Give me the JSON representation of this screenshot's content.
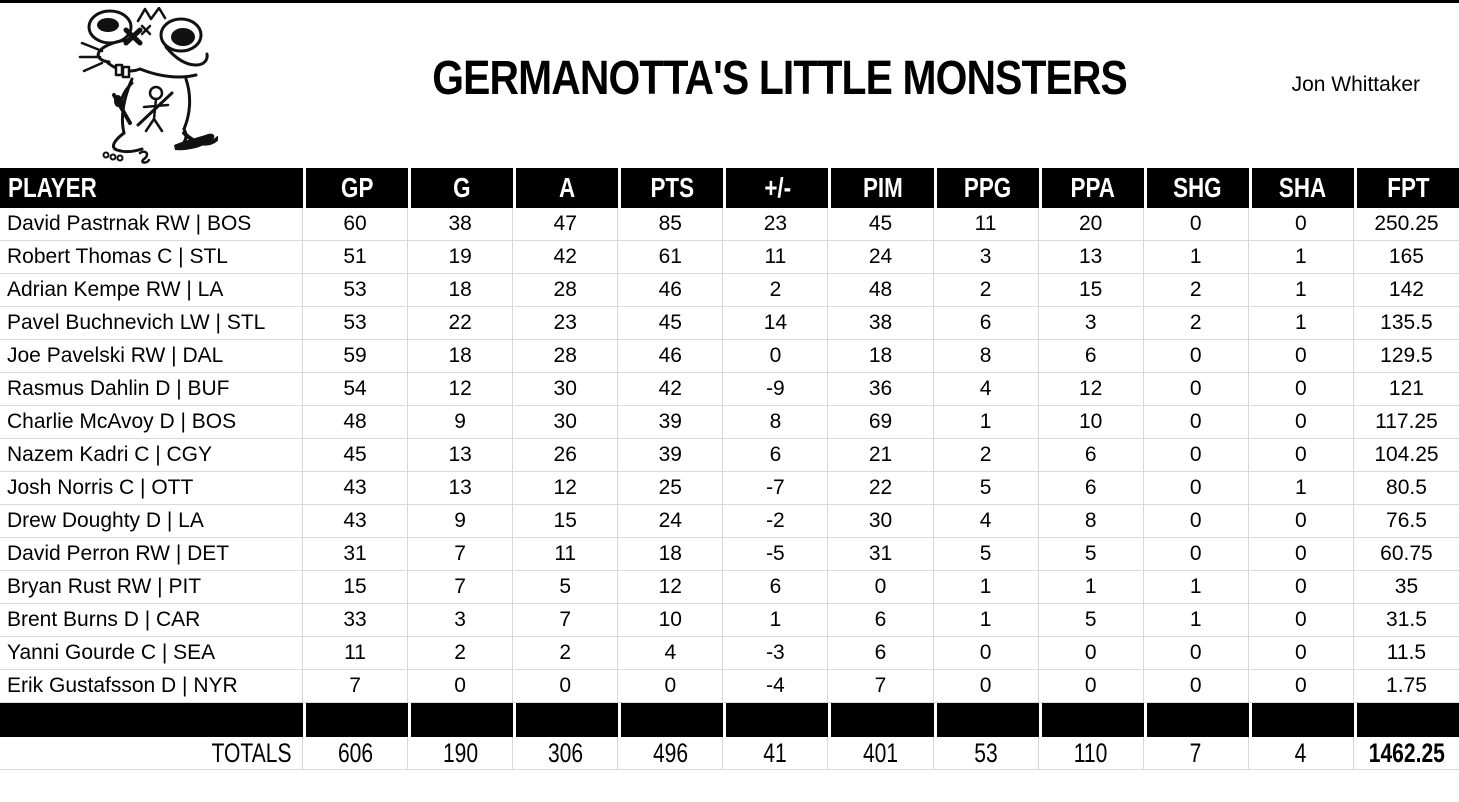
{
  "header": {
    "team_name": "GERMANOTTA'S LITTLE MONSTERS",
    "owner": "Jon Whittaker",
    "logo_icon": "rat-cartoon-doodle"
  },
  "table": {
    "columns": [
      "PLAYER",
      "GP",
      "G",
      "A",
      "PTS",
      "+/-",
      "PIM",
      "PPG",
      "PPA",
      "SHG",
      "SHA",
      "FPT"
    ],
    "rows": [
      {
        "player": "David Pastrnak RW | BOS",
        "stats": [
          "60",
          "38",
          "47",
          "85",
          "23",
          "45",
          "11",
          "20",
          "0",
          "0",
          "250.25"
        ]
      },
      {
        "player": "Robert Thomas C | STL",
        "stats": [
          "51",
          "19",
          "42",
          "61",
          "11",
          "24",
          "3",
          "13",
          "1",
          "1",
          "165"
        ]
      },
      {
        "player": "Adrian Kempe RW | LA",
        "stats": [
          "53",
          "18",
          "28",
          "46",
          "2",
          "48",
          "2",
          "15",
          "2",
          "1",
          "142"
        ]
      },
      {
        "player": "Pavel Buchnevich LW | STL",
        "stats": [
          "53",
          "22",
          "23",
          "45",
          "14",
          "38",
          "6",
          "3",
          "2",
          "1",
          "135.5"
        ]
      },
      {
        "player": "Joe Pavelski RW | DAL",
        "stats": [
          "59",
          "18",
          "28",
          "46",
          "0",
          "18",
          "8",
          "6",
          "0",
          "0",
          "129.5"
        ]
      },
      {
        "player": "Rasmus Dahlin D | BUF",
        "stats": [
          "54",
          "12",
          "30",
          "42",
          "-9",
          "36",
          "4",
          "12",
          "0",
          "0",
          "121"
        ]
      },
      {
        "player": "Charlie McAvoy D | BOS",
        "stats": [
          "48",
          "9",
          "30",
          "39",
          "8",
          "69",
          "1",
          "10",
          "0",
          "0",
          "117.25"
        ]
      },
      {
        "player": "Nazem Kadri C | CGY",
        "stats": [
          "45",
          "13",
          "26",
          "39",
          "6",
          "21",
          "2",
          "6",
          "0",
          "0",
          "104.25"
        ]
      },
      {
        "player": "Josh Norris C | OTT",
        "stats": [
          "43",
          "13",
          "12",
          "25",
          "-7",
          "22",
          "5",
          "6",
          "0",
          "1",
          "80.5"
        ]
      },
      {
        "player": "Drew Doughty D | LA",
        "stats": [
          "43",
          "9",
          "15",
          "24",
          "-2",
          "30",
          "4",
          "8",
          "0",
          "0",
          "76.5"
        ]
      },
      {
        "player": "David Perron RW | DET",
        "stats": [
          "31",
          "7",
          "11",
          "18",
          "-5",
          "31",
          "5",
          "5",
          "0",
          "0",
          "60.75"
        ]
      },
      {
        "player": "Bryan Rust RW | PIT",
        "stats": [
          "15",
          "7",
          "5",
          "12",
          "6",
          "0",
          "1",
          "1",
          "1",
          "0",
          "35"
        ]
      },
      {
        "player": "Brent Burns D | CAR",
        "stats": [
          "33",
          "3",
          "7",
          "10",
          "1",
          "6",
          "1",
          "5",
          "1",
          "0",
          "31.5"
        ]
      },
      {
        "player": "Yanni Gourde C | SEA",
        "stats": [
          "11",
          "2",
          "2",
          "4",
          "-3",
          "6",
          "0",
          "0",
          "0",
          "0",
          "11.5"
        ]
      },
      {
        "player": "Erik Gustafsson D | NYR",
        "stats": [
          "7",
          "0",
          "0",
          "0",
          "-4",
          "7",
          "0",
          "0",
          "0",
          "0",
          "1.75"
        ]
      }
    ],
    "totals": {
      "label": "TOTALS",
      "stats": [
        "606",
        "190",
        "306",
        "496",
        "41",
        "401",
        "53",
        "110",
        "7",
        "4",
        "1462.25"
      ]
    }
  },
  "colors": {
    "band_bg": "#000000",
    "band_text": "#ffffff",
    "grid_line": "#d9d9d9",
    "text": "#000000"
  }
}
